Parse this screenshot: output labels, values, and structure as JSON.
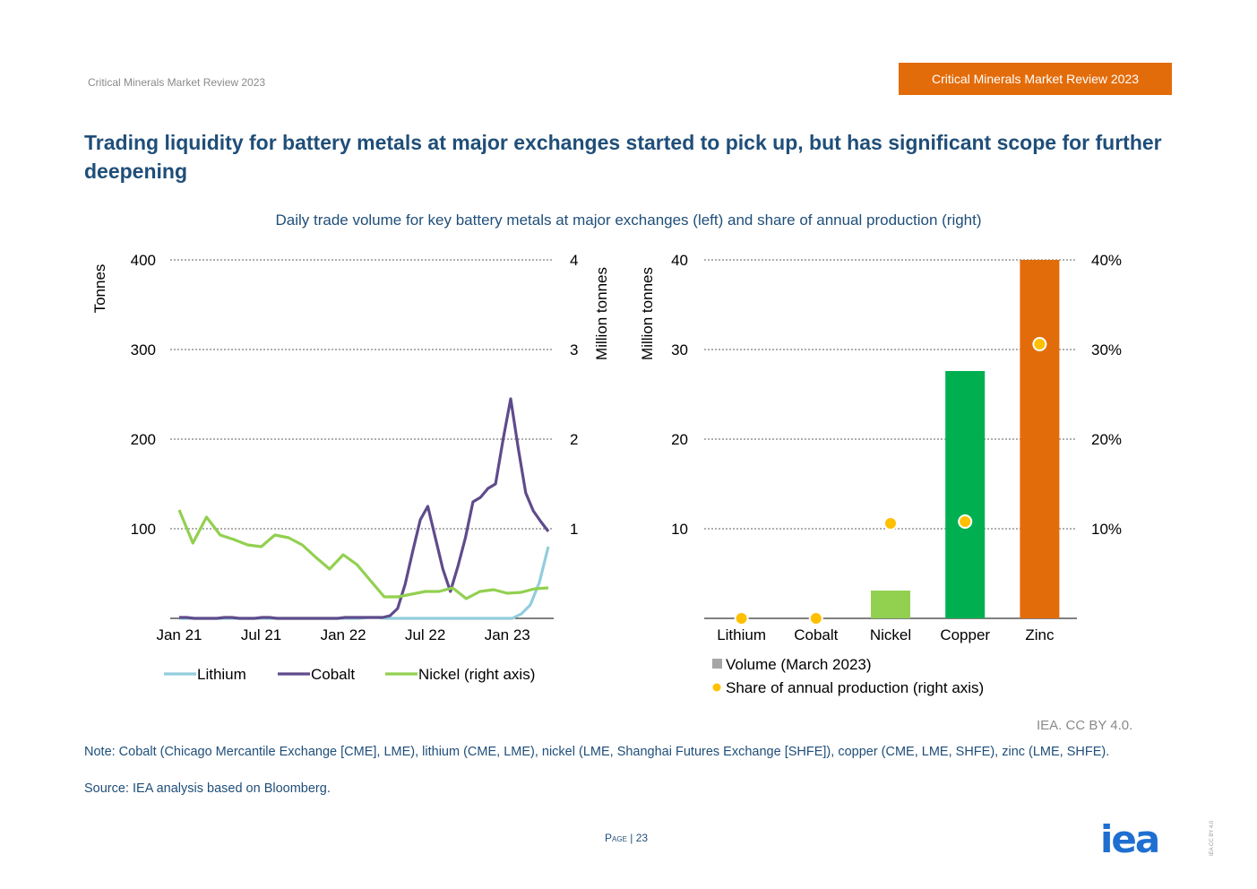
{
  "header": {
    "left_text": "Critical Minerals Market Review 2023",
    "badge_text": "Critical Minerals Market Review 2023"
  },
  "title": "Trading liquidity for battery metals at major exchanges started to pick up, but has significant scope for further deepening",
  "subtitle": "Daily trade volume for key battery metals at major exchanges (left) and share of annual production (right)",
  "credit": "IEA. CC BY 4.0.",
  "note": "Note: Cobalt (Chicago Mercantile Exchange [CME], LME), lithium (CME, LME), nickel (LME, Shanghai Futures Exchange [SHFE]), copper (CME, LME, SHFE), zinc (LME, SHFE).",
  "source": "Source: IEA analysis based on Bloomberg.",
  "page": {
    "label": "Page",
    "number": "23"
  },
  "logo": "iea",
  "side_license": "IEA CC BY 4.0",
  "colors": {
    "lithium": "#92cddc",
    "cobalt": "#5f4b8b",
    "nickel": "#92d050",
    "copper": "#00b050",
    "zinc": "#e36c0a",
    "dot": "#ffc000",
    "legend_square": "#a6a6a6",
    "grid": "#7f7f7f"
  },
  "chart_data": [
    {
      "type": "line",
      "ylabel": "Tonnes",
      "y2label": "Million tonnes",
      "ylim": [
        0,
        400
      ],
      "y2lim": [
        0,
        4
      ],
      "yticks": [
        "100",
        "200",
        "300",
        "400"
      ],
      "y2ticks": [
        "1",
        "2",
        "3",
        "4"
      ],
      "xticks": [
        "Jan 21",
        "Jul 21",
        "Jan 22",
        "Jul 22",
        "Jan 23"
      ],
      "xtick_index": [
        0,
        6,
        12,
        18,
        24
      ],
      "series": [
        {
          "name": "Lithium",
          "axis": "left",
          "color_key": "lithium",
          "values": [
            0,
            0,
            0,
            0,
            0,
            0,
            0,
            0,
            0,
            0,
            0,
            0,
            0,
            0,
            0,
            0,
            0,
            0,
            0,
            0,
            0,
            1,
            1,
            0,
            0,
            0,
            0,
            0,
            0,
            0,
            0,
            0,
            0,
            0,
            0,
            0,
            0,
            0,
            5,
            15,
            40,
            80
          ]
        },
        {
          "name": "Cobalt",
          "axis": "left",
          "color_key": "cobalt",
          "values": [
            1,
            1,
            0,
            0,
            0,
            0,
            1,
            1,
            0,
            0,
            0,
            1,
            1,
            0,
            0,
            0,
            0,
            0,
            0,
            0,
            0,
            0,
            1,
            1,
            1,
            1,
            1,
            1,
            3,
            11,
            38,
            75,
            110,
            125,
            90,
            55,
            30,
            58,
            90,
            130,
            135,
            145,
            150,
            200,
            245,
            190,
            140,
            120,
            108,
            97
          ]
        },
        {
          "name": "Nickel (right axis)",
          "axis": "right",
          "color_key": "nickel",
          "values": [
            1.21,
            0.84,
            1.13,
            0.93,
            0.88,
            0.82,
            0.8,
            0.93,
            0.9,
            0.82,
            0.68,
            0.55,
            0.71,
            0.6,
            0.42,
            0.24,
            0.24,
            0.27,
            0.3,
            0.3,
            0.34,
            0.22,
            0.3,
            0.32,
            0.28,
            0.29,
            0.33,
            0.34
          ]
        }
      ],
      "legend": [
        "Lithium",
        "Cobalt",
        "Nickel (right axis)"
      ]
    },
    {
      "type": "bar",
      "ylabel": "Million tonnes",
      "ylim": [
        0,
        40
      ],
      "y2lim": [
        0,
        40
      ],
      "yticks": [
        "10",
        "20",
        "30",
        "40"
      ],
      "y2ticks": [
        "10%",
        "20%",
        "30%",
        "40%"
      ],
      "categories": [
        "Lithium",
        "Cobalt",
        "Nickel",
        "Copper",
        "Zinc"
      ],
      "series": [
        {
          "name": "Volume (March 2023)",
          "axis": "left",
          "values": [
            0,
            0,
            3.1,
            27.6,
            40
          ]
        },
        {
          "name": "Share of annual production (right axis)",
          "axis": "right",
          "values": [
            0,
            0,
            10.6,
            10.8,
            30.6
          ]
        }
      ],
      "bar_color_keys": [
        "lithium",
        "cobalt",
        "nickel",
        "copper",
        "zinc"
      ],
      "legend": [
        "Volume (March 2023)",
        "Share of annual production (right axis)"
      ]
    }
  ]
}
